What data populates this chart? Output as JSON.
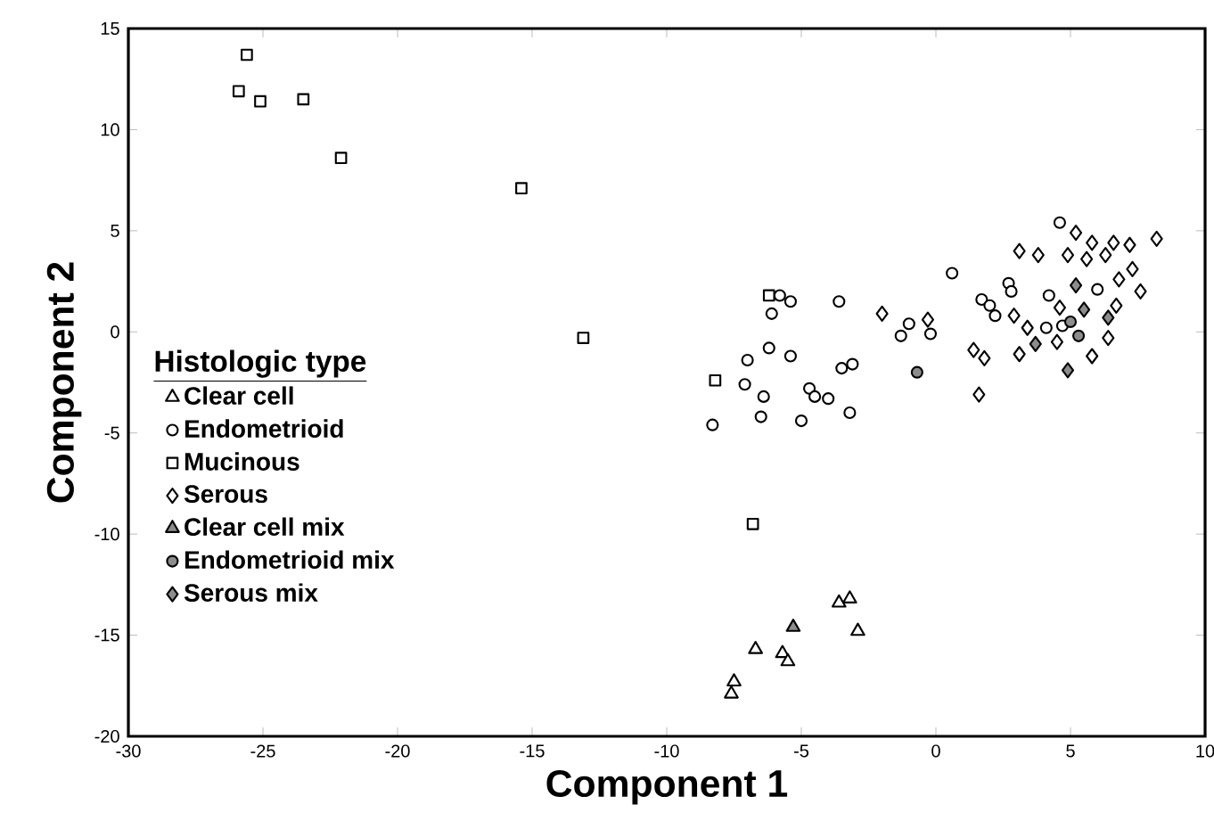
{
  "chart_data": {
    "type": "scatter",
    "xlabel": "Component 1",
    "ylabel": "Component 2",
    "legend_title": "Histologic type",
    "xlim": [
      -30,
      10
    ],
    "ylim": [
      -20,
      15
    ],
    "xticks": [
      -30,
      -25,
      -20,
      -15,
      -10,
      -5,
      0,
      5,
      10
    ],
    "yticks": [
      -20,
      -15,
      -10,
      -5,
      0,
      5,
      10,
      15
    ],
    "grid": false,
    "legend": "left",
    "series": [
      {
        "name": "Clear cell",
        "marker": "triangle",
        "color": "#ffffff",
        "x": [
          -3.6,
          -3.2,
          -2.9,
          -6.7,
          -5.7,
          -5.5,
          -7.5,
          -7.6
        ],
        "values": [
          -13.4,
          -13.2,
          -14.8,
          -15.7,
          -15.9,
          -16.3,
          -17.3,
          -17.9
        ]
      },
      {
        "name": "Endometrioid",
        "marker": "circle",
        "color": "#ffffff",
        "x": [
          4.6,
          0.6,
          -5.8,
          -5.4,
          -6.1,
          -3.6,
          -1.0,
          -1.3,
          -0.2,
          1.7,
          2.7,
          2.8,
          4.2,
          6.0,
          4.1,
          -6.2,
          -5.4,
          -7.0,
          -7.1,
          -6.4,
          -6.5,
          -8.3,
          -5.0,
          -4.7,
          -4.5,
          -4.0,
          -3.2,
          -3.5,
          -3.1,
          2.0,
          2.2,
          4.7
        ],
        "values": [
          5.4,
          2.9,
          1.8,
          1.5,
          0.9,
          1.5,
          0.4,
          -0.2,
          -0.1,
          1.6,
          2.4,
          2.0,
          1.8,
          2.1,
          0.2,
          -0.8,
          -1.2,
          -1.4,
          -2.6,
          -3.2,
          -4.2,
          -4.6,
          -4.4,
          -2.8,
          -3.2,
          -3.3,
          -4.0,
          -1.8,
          -1.6,
          1.3,
          0.8,
          0.3
        ]
      },
      {
        "name": "Mucinous",
        "marker": "square",
        "color": "#ffffff",
        "x": [
          -25.6,
          -25.9,
          -25.1,
          -23.5,
          -22.1,
          -15.4,
          -13.1,
          -6.2,
          -8.2,
          -6.8
        ],
        "values": [
          13.7,
          11.9,
          11.4,
          11.5,
          8.6,
          7.1,
          -0.3,
          1.8,
          -2.4,
          -9.5
        ]
      },
      {
        "name": "Serous",
        "marker": "diamond",
        "color": "#ffffff",
        "x": [
          3.1,
          3.8,
          5.2,
          5.8,
          6.6,
          7.2,
          8.2,
          4.9,
          5.6,
          6.3,
          7.3,
          6.8,
          7.6,
          6.7,
          6.4,
          -2.0,
          -0.3,
          1.4,
          1.8,
          1.6,
          3.1,
          3.4,
          2.9,
          4.5,
          5.8,
          4.6
        ],
        "values": [
          4.0,
          3.8,
          4.9,
          4.4,
          4.4,
          4.3,
          4.6,
          3.8,
          3.6,
          3.8,
          3.1,
          2.6,
          2.0,
          1.3,
          -0.3,
          0.9,
          0.6,
          -0.9,
          -1.3,
          -3.1,
          -1.1,
          0.2,
          0.8,
          -0.5,
          -1.2,
          1.2
        ]
      },
      {
        "name": "Clear cell mix",
        "marker": "triangle",
        "color": "#8c8c8c",
        "x": [
          -5.3
        ],
        "values": [
          -14.6
        ]
      },
      {
        "name": "Endometrioid mix",
        "marker": "circle",
        "color": "#8c8c8c",
        "x": [
          -0.7,
          5.0,
          5.3
        ],
        "values": [
          -2.0,
          0.5,
          -0.2
        ]
      },
      {
        "name": "Serous mix",
        "marker": "diamond",
        "color": "#8c8c8c",
        "x": [
          5.2,
          5.5,
          6.4,
          3.7,
          4.9
        ],
        "values": [
          2.3,
          1.1,
          0.7,
          -0.6,
          -1.9
        ]
      }
    ]
  }
}
